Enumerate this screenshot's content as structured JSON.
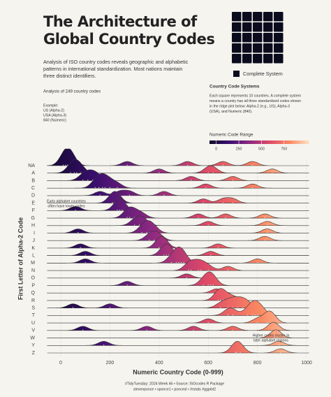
{
  "chart_data": {
    "type": "ridgeline",
    "title_lines": [
      "The Architecture of",
      "Global Country Codes"
    ],
    "subtitle_lines": [
      "Analysis of ISO country codes reveals geographic and alphabetic",
      "patterns in international standardization. Most nations maintain",
      "three distinct identifiers."
    ],
    "count_note": "Analysis of 249 country codes",
    "example_lines": [
      "Example:",
      "US (Alpha-2)",
      "USA (Alpha-3)",
      "840 (Numeric)"
    ],
    "waffle": {
      "squares": 25,
      "color": "#0b0b1e",
      "legend": "Complete System"
    },
    "systems_title": "Country Code Systems",
    "systems_lines": [
      "Each square represents 10 countries. A complete system",
      "means a country has all three standardized codes shown",
      "in the ridge plot below: Alpha-2 (e.g., US), Alpha-3",
      "(USA), and Numeric (840)."
    ],
    "color_scale": {
      "title": "Numeric Code Range",
      "colors": [
        "#0d0829",
        "#3b0f6f",
        "#8c2981",
        "#de4968",
        "#fb8861",
        "#fde5c8"
      ],
      "ticks": [
        0,
        250,
        500,
        750
      ]
    },
    "x_label": "Numeric Country Code (0-999)",
    "y_label": "First Letter of Alpha-2 Code",
    "xlim": [
      -75,
      1030
    ],
    "xticks": [
      0,
      200,
      400,
      600,
      800,
      1000
    ],
    "categories": [
      "NA",
      "A",
      "B",
      "C",
      "D",
      "E",
      "F",
      "G",
      "H",
      "I",
      "J",
      "K",
      "L",
      "M",
      "N",
      "O",
      "P",
      "Q",
      "R",
      "S",
      "T",
      "U",
      "V",
      "W",
      "Y",
      "Z"
    ],
    "values": [
      [
        10,
        20,
        28,
        36,
        45,
        270,
        516,
        660,
        780
      ],
      [
        40,
        55,
        65,
        80,
        400,
        600,
        620,
        860
      ],
      [
        90,
        110,
        130,
        150,
        530,
        700
      ],
      [
        140,
        155,
        170,
        180,
        200,
        230,
        590,
        780
      ],
      [
        160,
        240,
        280,
        420
      ],
      [
        210,
        220,
        230,
        580,
        660,
        700
      ],
      [
        60,
        230,
        240,
        250
      ],
      [
        270,
        280,
        300,
        330,
        560,
        670,
        830
      ],
      [
        300,
        320,
        340,
        600,
        840
      ],
      [
        70,
        330,
        350,
        360,
        380,
        840
      ],
      [
        360,
        380,
        400,
        830
      ],
      [
        80,
        400,
        410,
        420,
        640
      ],
      [
        100,
        420,
        430,
        440,
        610
      ],
      [
        100,
        450,
        470,
        480,
        490,
        500,
        800
      ],
      [
        520,
        530,
        560,
        570,
        600,
        680
      ],
      [
        512
      ],
      [
        270,
        580,
        600,
        610,
        620
      ],
      [
        634
      ],
      [
        640,
        650,
        660,
        700
      ],
      [
        50,
        200,
        650,
        680,
        700,
        720,
        740,
        760
      ],
      [
        680,
        700,
        760,
        780,
        790,
        800,
        820
      ],
      [
        600,
        800,
        840,
        850,
        860
      ],
      [
        90,
        350,
        540,
        700,
        860,
        870
      ],
      [
        870,
        880
      ],
      [
        175,
        887
      ],
      [
        710,
        716,
        730,
        894
      ]
    ],
    "annotations": [
      {
        "lines": [
          "Early alphabet countries",
          "often have lower codes"
        ]
      },
      {
        "lines": [
          "Higher codes cluster in",
          "later alphabet regions"
        ]
      }
    ],
    "caption_lines": [
      "#TidyTuesday: 2024 Week 46 • Source: ISOcodes R Package",
      "stevenponce • sponce1 • poncest • #rstats #ggplot2"
    ]
  }
}
